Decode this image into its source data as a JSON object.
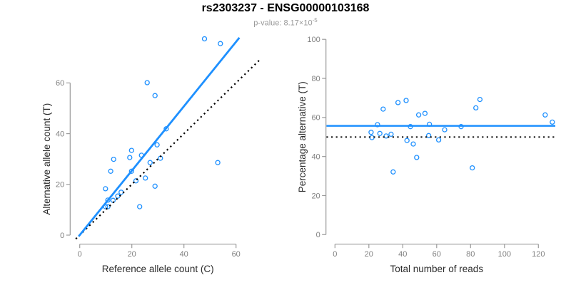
{
  "header": {
    "title": "rs2303237 - ENSG00000103168",
    "subtitle_base": "p-value: 8.17×10",
    "subtitle_exponent": "-5"
  },
  "colors": {
    "accent": "#1E90FF",
    "axis": "#9b9b9b",
    "tick_label": "#7f7f7f",
    "axis_title": "#2b2b2b",
    "title": "#000000",
    "subtitle": "#999999",
    "reference_line": "#000000"
  },
  "chart_data": [
    {
      "id": "left",
      "type": "scatter",
      "xlabel": "Reference allele count (C)",
      "ylabel": "Alternative allele count (T)",
      "xticks": [
        0,
        20,
        40,
        60
      ],
      "yticks": [
        0,
        20,
        40,
        60
      ],
      "xlim": [
        -2.5,
        69.5
      ],
      "ylim": [
        -2.5,
        79
      ],
      "grid": false,
      "points": [
        [
          47.9,
          77.4
        ],
        [
          54.0,
          75.5
        ],
        [
          25.9,
          60.1
        ],
        [
          28.9,
          55.0
        ],
        [
          33.2,
          41.9
        ],
        [
          29.7,
          35.6
        ],
        [
          19.9,
          33.4
        ],
        [
          19.2,
          30.6
        ],
        [
          23.7,
          31.5
        ],
        [
          13.0,
          29.9
        ],
        [
          31.0,
          30.3
        ],
        [
          27.0,
          28.6
        ],
        [
          11.9,
          25.2
        ],
        [
          53.0,
          28.6
        ],
        [
          19.9,
          25.2
        ],
        [
          25.2,
          22.5
        ],
        [
          21.6,
          21.4
        ],
        [
          9.9,
          18.3
        ],
        [
          28.9,
          19.3
        ],
        [
          15.9,
          16.9
        ],
        [
          14.6,
          15.4
        ],
        [
          10.8,
          13.8
        ],
        [
          12.8,
          13.7
        ],
        [
          9.9,
          11.2
        ],
        [
          10.8,
          11.2
        ],
        [
          23.0,
          11.2
        ]
      ],
      "lines": [
        {
          "name": "identity-line",
          "slope": 1,
          "intercept": 0,
          "x_range": [
            -1.5,
            69.3
          ],
          "style": "dotted",
          "color": "#000000",
          "width": 2.2
        },
        {
          "name": "regression-line",
          "slope": 1.27,
          "intercept": 0,
          "x_range": [
            -0.4,
            61.3
          ],
          "style": "solid",
          "color": "#1E90FF",
          "width": 2.8
        }
      ]
    },
    {
      "id": "right",
      "type": "scatter",
      "xlabel": "Total number of reads",
      "ylabel": "Percentage alternative (T)",
      "xticks": [
        0,
        20,
        40,
        60,
        80,
        100,
        120
      ],
      "yticks": [
        0,
        20,
        40,
        60,
        80,
        100
      ],
      "xlim": [
        -5,
        130
      ],
      "ylim": [
        -4,
        104
      ],
      "grid": false,
      "points": [
        [
          37.2,
          67.6
        ],
        [
          42.0,
          68.7
        ],
        [
          28.4,
          64.3
        ],
        [
          85.5,
          69.2
        ],
        [
          83.1,
          64.9
        ],
        [
          49.4,
          61.3
        ],
        [
          53.1,
          62.1
        ],
        [
          124.0,
          61.3
        ],
        [
          128.2,
          57.6
        ],
        [
          55.7,
          56.5
        ],
        [
          25.1,
          56.3
        ],
        [
          44.5,
          55.3
        ],
        [
          74.4,
          55.3
        ],
        [
          64.7,
          53.7
        ],
        [
          21.3,
          52.4
        ],
        [
          26.5,
          51.8
        ],
        [
          33.1,
          51.4
        ],
        [
          21.8,
          49.7
        ],
        [
          30.2,
          50.5
        ],
        [
          42.5,
          48.2
        ],
        [
          55.3,
          50.7
        ],
        [
          61.2,
          48.5
        ],
        [
          46.2,
          46.4
        ],
        [
          48.2,
          39.5
        ],
        [
          81.0,
          34.2
        ],
        [
          34.3,
          32.1
        ]
      ],
      "lines": [
        {
          "name": "null-line",
          "y": 50,
          "x_range": [
            -5,
            130
          ],
          "style": "dotted",
          "color": "#000000",
          "width": 1.8
        },
        {
          "name": "mean-line",
          "y": 55.7,
          "x_range": [
            -5,
            130
          ],
          "style": "solid",
          "color": "#1E90FF",
          "width": 2.5
        }
      ]
    }
  ]
}
